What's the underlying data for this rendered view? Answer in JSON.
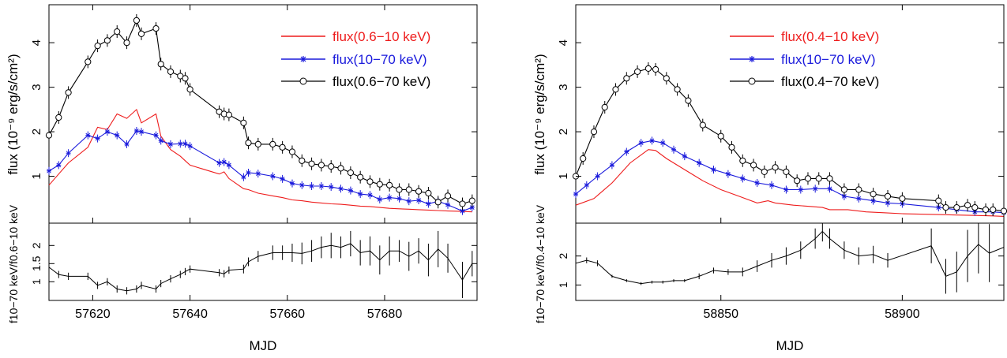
{
  "colors": {
    "soft": "#ee1c1c",
    "hard": "#1a1adc",
    "total": "#000000"
  },
  "chart_data": [
    {
      "type": "line",
      "xlabel": "MJD",
      "ylabel": "flux (10⁻⁹ erg/s/cm²)",
      "ratio_ylabel": "f10−70 keV/f0.6−10 keV",
      "xlim": [
        57611,
        57699
      ],
      "ylim": [
        0,
        4.8
      ],
      "ratio_ylim": [
        0.55,
        2.55
      ],
      "xticks": [
        57620,
        57640,
        57660,
        57680
      ],
      "yticks": [
        1,
        2,
        3,
        4
      ],
      "ratio_yticks": [
        1,
        1.5,
        2
      ],
      "legend_position": "top-right",
      "series": [
        {
          "name": "flux(0.6−10 keV)",
          "color_key": "soft",
          "x": [
            57611,
            57613,
            57615,
            57619,
            57621,
            57623,
            57625,
            57627,
            57629,
            57630,
            57633,
            57634,
            57636,
            57638,
            57639,
            57640,
            57646,
            57647,
            57648,
            57651,
            57652,
            57654,
            57657,
            57659,
            57661,
            57663,
            57665,
            57667,
            57669,
            57671,
            57673,
            57675,
            57677,
            57679,
            57681,
            57683,
            57685,
            57687,
            57689,
            57691,
            57693,
            57696,
            57698
          ],
          "values": [
            0.8,
            1.05,
            1.3,
            1.65,
            2.1,
            2.05,
            2.4,
            2.3,
            2.5,
            2.2,
            2.4,
            1.9,
            1.6,
            1.45,
            1.35,
            1.25,
            1.05,
            1.1,
            0.95,
            0.72,
            0.7,
            0.62,
            0.56,
            0.52,
            0.47,
            0.45,
            0.42,
            0.4,
            0.38,
            0.37,
            0.35,
            0.33,
            0.32,
            0.3,
            0.28,
            0.27,
            0.26,
            0.25,
            0.24,
            0.23,
            0.22,
            0.21,
            0.2
          ]
        },
        {
          "name": "flux(10−70 keV)",
          "color_key": "hard",
          "x": [
            57611,
            57613,
            57615,
            57619,
            57621,
            57623,
            57625,
            57627,
            57629,
            57630,
            57633,
            57634,
            57636,
            57638,
            57639,
            57640,
            57646,
            57647,
            57648,
            57651,
            57652,
            57654,
            57657,
            57659,
            57661,
            57663,
            57665,
            57667,
            57669,
            57671,
            57673,
            57675,
            57677,
            57679,
            57681,
            57683,
            57685,
            57687,
            57689,
            57691,
            57693,
            57696,
            57698
          ],
          "values": [
            1.12,
            1.25,
            1.52,
            1.92,
            1.85,
            2.0,
            1.92,
            1.72,
            2.02,
            2.0,
            1.92,
            1.8,
            1.72,
            1.73,
            1.73,
            1.68,
            1.3,
            1.32,
            1.25,
            0.98,
            1.08,
            1.06,
            1.0,
            0.94,
            0.84,
            0.8,
            0.78,
            0.78,
            0.76,
            0.72,
            0.68,
            0.6,
            0.58,
            0.48,
            0.52,
            0.5,
            0.44,
            0.46,
            0.38,
            0.44,
            0.36,
            0.22,
            0.3
          ]
        },
        {
          "name": "flux(0.6−70 keV)",
          "color_key": "total",
          "x": [
            57611,
            57613,
            57615,
            57619,
            57621,
            57623,
            57625,
            57627,
            57629,
            57630,
            57633,
            57634,
            57636,
            57638,
            57639,
            57640,
            57646,
            57647,
            57648,
            57651,
            57652,
            57654,
            57657,
            57659,
            57661,
            57663,
            57665,
            57667,
            57669,
            57671,
            57673,
            57675,
            57677,
            57679,
            57681,
            57683,
            57685,
            57687,
            57689,
            57691,
            57693,
            57696,
            57698
          ],
          "values": [
            1.92,
            2.32,
            2.88,
            3.57,
            3.93,
            4.05,
            4.25,
            4.0,
            4.5,
            4.2,
            4.32,
            3.52,
            3.35,
            3.25,
            3.2,
            2.95,
            2.45,
            2.4,
            2.38,
            2.2,
            1.75,
            1.72,
            1.72,
            1.65,
            1.55,
            1.35,
            1.28,
            1.25,
            1.22,
            1.18,
            1.08,
            0.98,
            0.88,
            0.82,
            0.8,
            0.7,
            0.7,
            0.66,
            0.62,
            0.42,
            0.56,
            0.38,
            0.45
          ]
        }
      ],
      "ratio": {
        "x": [
          57611,
          57613,
          57615,
          57619,
          57621,
          57623,
          57625,
          57627,
          57629,
          57630,
          57633,
          57634,
          57636,
          57638,
          57639,
          57640,
          57646,
          57647,
          57648,
          57651,
          57652,
          57654,
          57657,
          57659,
          57661,
          57663,
          57665,
          57667,
          57669,
          57671,
          57673,
          57675,
          57677,
          57679,
          57681,
          57683,
          57685,
          57687,
          57689,
          57691,
          57693,
          57696,
          57698
        ],
        "values": [
          1.4,
          1.2,
          1.15,
          1.15,
          0.9,
          1.0,
          0.8,
          0.75,
          0.8,
          0.9,
          0.8,
          0.95,
          1.08,
          1.2,
          1.28,
          1.35,
          1.25,
          1.22,
          1.32,
          1.35,
          1.55,
          1.7,
          1.8,
          1.8,
          1.8,
          1.78,
          1.85,
          1.95,
          2.0,
          1.95,
          2.05,
          1.8,
          1.85,
          1.6,
          1.85,
          1.85,
          1.7,
          1.85,
          1.6,
          1.9,
          1.65,
          1.05,
          1.5
        ],
        "err": [
          0.15,
          0.1,
          0.1,
          0.1,
          0.1,
          0.1,
          0.1,
          0.1,
          0.1,
          0.1,
          0.1,
          0.1,
          0.1,
          0.1,
          0.1,
          0.1,
          0.1,
          0.1,
          0.1,
          0.12,
          0.12,
          0.15,
          0.2,
          0.2,
          0.25,
          0.3,
          0.3,
          0.3,
          0.35,
          0.3,
          0.35,
          0.35,
          0.4,
          0.4,
          0.4,
          0.3,
          0.4,
          0.35,
          0.45,
          0.5,
          0.4,
          0.5,
          0.35
        ]
      }
    },
    {
      "type": "line",
      "xlabel": "MJD",
      "ylabel": "flux (10⁻⁹ erg/s/cm²)",
      "ratio_ylabel": "f10−70 keV/f0.4−10 keV",
      "xlim": [
        58810,
        58928
      ],
      "ylim": [
        0,
        4.8
      ],
      "ratio_ylim": [
        0.55,
        3.05
      ],
      "xticks": [
        58850,
        58900
      ],
      "yticks": [
        1,
        2,
        3,
        4
      ],
      "ratio_yticks": [
        1,
        2
      ],
      "legend_position": "top-right",
      "series": [
        {
          "name": "flux(0.4−10 keV)",
          "color_key": "soft",
          "x": [
            58810,
            58815,
            58820,
            58825,
            58830,
            58832,
            58835,
            58840,
            58845,
            58850,
            58855,
            58860,
            58863,
            58865,
            58870,
            58875,
            58878,
            58880,
            58885,
            58890,
            58895,
            58900,
            58910,
            58915,
            58920,
            58925,
            58928
          ],
          "values": [
            0.35,
            0.5,
            0.85,
            1.3,
            1.6,
            1.58,
            1.4,
            1.15,
            0.9,
            0.7,
            0.55,
            0.4,
            0.45,
            0.4,
            0.35,
            0.32,
            0.3,
            0.25,
            0.25,
            0.2,
            0.18,
            0.16,
            0.14,
            0.13,
            0.12,
            0.11,
            0.1
          ]
        },
        {
          "name": "flux(10−70 keV)",
          "color_key": "hard",
          "x": [
            58810,
            58813,
            58816,
            58820,
            58824,
            58828,
            58831,
            58834,
            58837,
            58840,
            58844,
            58848,
            58852,
            58856,
            58860,
            58864,
            58868,
            58872,
            58876,
            58880,
            58884,
            58888,
            58892,
            58896,
            58900,
            58910,
            58915,
            58920,
            58925,
            58928
          ],
          "values": [
            0.6,
            0.8,
            1.0,
            1.25,
            1.55,
            1.75,
            1.8,
            1.75,
            1.6,
            1.45,
            1.3,
            1.15,
            1.05,
            0.95,
            0.85,
            0.8,
            0.7,
            0.7,
            0.72,
            0.72,
            0.55,
            0.5,
            0.45,
            0.4,
            0.38,
            0.3,
            0.25,
            0.2,
            0.2,
            0.18
          ]
        },
        {
          "name": "flux(0.4−70 keV)",
          "color_key": "total",
          "x": [
            58810,
            58812,
            58815,
            58818,
            58821,
            58824,
            58827,
            58830,
            58832,
            58835,
            58838,
            58841,
            58845,
            58850,
            58853,
            58856,
            58859,
            58862,
            58865,
            58868,
            58871,
            58874,
            58877,
            58880,
            58884,
            58888,
            58892,
            58896,
            58900,
            58910,
            58912,
            58915,
            58918,
            58920,
            58923,
            58925,
            58928
          ],
          "values": [
            1.0,
            1.4,
            2.0,
            2.55,
            2.95,
            3.2,
            3.35,
            3.42,
            3.4,
            3.2,
            2.95,
            2.7,
            2.15,
            1.9,
            1.65,
            1.35,
            1.25,
            1.1,
            1.2,
            1.1,
            0.9,
            0.95,
            0.95,
            0.95,
            0.7,
            0.7,
            0.6,
            0.55,
            0.5,
            0.45,
            0.3,
            0.3,
            0.35,
            0.3,
            0.25,
            0.25,
            0.22
          ]
        }
      ],
      "ratio": {
        "x": [
          58810,
          58813,
          58816,
          58820,
          58824,
          58828,
          58831,
          58834,
          58837,
          58840,
          58844,
          58848,
          58852,
          58856,
          58860,
          58864,
          58868,
          58872,
          58876,
          58878,
          58880,
          58884,
          58888,
          58892,
          58896,
          58908,
          58912,
          58915,
          58918,
          58921,
          58924,
          58928
        ],
        "values": [
          1.75,
          1.85,
          1.75,
          1.3,
          1.15,
          1.05,
          1.1,
          1.1,
          1.15,
          1.15,
          1.3,
          1.5,
          1.45,
          1.45,
          1.65,
          1.85,
          2.0,
          2.2,
          2.6,
          2.85,
          2.6,
          2.2,
          2.0,
          2.05,
          1.85,
          2.35,
          1.3,
          1.45,
          2.0,
          2.4,
          2.1,
          2.3
        ],
        "err": [
          0.1,
          0.1,
          0.1,
          0.05,
          0.05,
          0.05,
          0.05,
          0.05,
          0.05,
          0.05,
          0.1,
          0.1,
          0.1,
          0.15,
          0.2,
          0.25,
          0.3,
          0.3,
          0.35,
          0.35,
          0.35,
          0.3,
          0.3,
          0.3,
          0.25,
          0.6,
          0.6,
          0.7,
          0.9,
          1.0,
          1.0,
          1.0
        ]
      }
    }
  ]
}
